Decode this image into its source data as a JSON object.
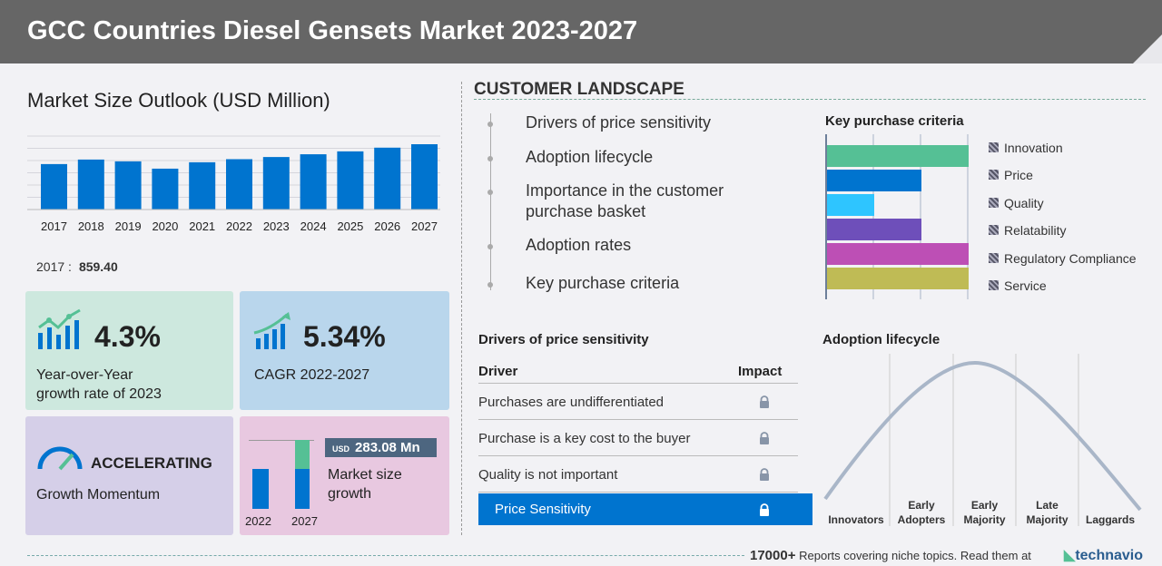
{
  "title": "GCC Countries Diesel Gensets Market 2023-2027",
  "market": {
    "title": "Market Size Outlook (USD Million)",
    "selected_year": "2017 :",
    "selected_value": "859.40"
  },
  "chart_data": {
    "type": "bar",
    "title": "Market Size Outlook (USD Million)",
    "categories": [
      "2017",
      "2018",
      "2019",
      "2020",
      "2021",
      "2022",
      "2023",
      "2024",
      "2025",
      "2026",
      "2027"
    ],
    "values": [
      859.4,
      945,
      911,
      773,
      894,
      952,
      993,
      1045,
      1100,
      1170,
      1235
    ],
    "ylim": [
      0,
      1400
    ],
    "grid": true,
    "color": "#0074cf"
  },
  "cards": {
    "yoy": {
      "value": "4.3%",
      "label1": "Year-over-Year",
      "label2": "growth rate of 2023"
    },
    "cagr": {
      "value": "5.34%",
      "label": "CAGR 2022-2027"
    },
    "momentum": {
      "value": "ACCELERATING",
      "label": "Growth Momentum"
    },
    "growth": {
      "currency": "USD",
      "value": "283.08 Mn",
      "label1": "Market size",
      "label2": "growth",
      "year_start": "2022",
      "year_end": "2027"
    }
  },
  "customer": {
    "title": "CUSTOMER LANDSCAPE",
    "items": [
      "Drivers of price sensitivity",
      "Adoption lifecycle",
      "Importance in the customer",
      "purchase basket",
      "Adoption rates",
      "Key purchase criteria"
    ]
  },
  "kpc": {
    "title": "Key purchase criteria",
    "items": [
      {
        "label": "Innovation",
        "level": 3,
        "color": "#55c095"
      },
      {
        "label": "Price",
        "level": 2,
        "color": "#0074cf"
      },
      {
        "label": "Quality",
        "level": 1,
        "color": "#2ec5ff"
      },
      {
        "label": "Relatability",
        "level": 2,
        "color": "#6e4fba"
      },
      {
        "label": "Regulatory Compliance",
        "level": 3,
        "color": "#bd4fb5"
      },
      {
        "label": "Service",
        "level": 3,
        "color": "#bfbb55"
      }
    ]
  },
  "drivers": {
    "title": "Drivers of price sensitivity",
    "col1": "Driver",
    "col2": "Impact",
    "rows": [
      "Purchases are undifferentiated",
      "Purchase is a key cost to the buyer",
      "Quality is not important"
    ],
    "highlight": "Price Sensitivity"
  },
  "adoption": {
    "title": "Adoption lifecycle",
    "stages": [
      [
        "Innovators"
      ],
      [
        "Early",
        "Adopters"
      ],
      [
        "Early",
        "Majority"
      ],
      [
        "Late",
        "Majority"
      ],
      [
        "Laggards"
      ]
    ]
  },
  "footer": {
    "count": "17000+",
    "text": "Reports covering niche topics. Read them at",
    "brand": "technavio"
  }
}
